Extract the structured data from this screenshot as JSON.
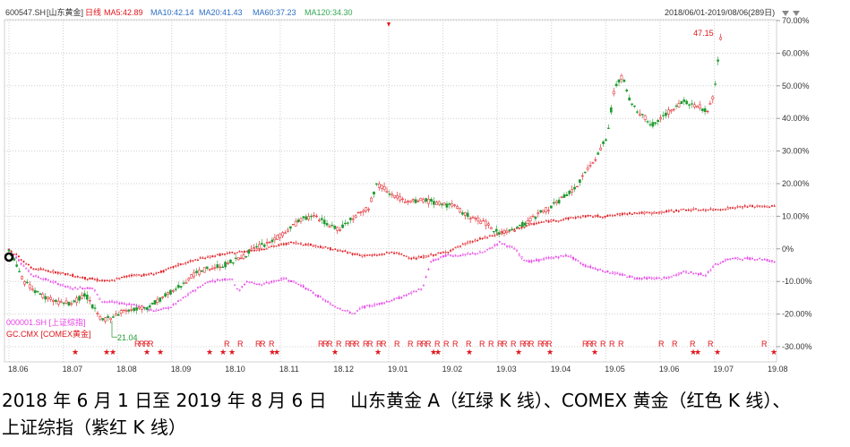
{
  "chart_data": {
    "type": "line",
    "header": {
      "code": "600547.SH",
      "name": "[山东黄金]",
      "period": "日线",
      "ma": [
        {
          "label": "MA5:42.89",
          "color": "#e0161c"
        },
        {
          "label": "MA10:42.14",
          "color": "#2e6fc6"
        },
        {
          "label": "MA20:41.43",
          "color": "#2e6fc6"
        },
        {
          "label": "MA60:37.23",
          "color": "#2e6fc6"
        },
        {
          "label": "MA120:34.30",
          "color": "#34a853"
        }
      ],
      "range": "2018/06/01-2019/08/06(289日)"
    },
    "x_ticks": [
      "18.06",
      "18.07",
      "18.08",
      "18.09",
      "18.10",
      "18.11",
      "18.12",
      "19.01",
      "19.02",
      "19.03",
      "19.04",
      "19.05",
      "19.06",
      "19.07",
      "19.08"
    ],
    "y_ticks": [
      "70.00%",
      "60.00%",
      "50.00%",
      "40.00%",
      "30.00%",
      "20.00%",
      "10.00%",
      "0%",
      "-10.00%",
      "-20.00%",
      "-30.00%"
    ],
    "ylim": [
      -30,
      70
    ],
    "annotations": {
      "max_label": "47.15",
      "min_label": "21.04"
    },
    "series": [
      {
        "name": "000001.SH [上证综指]",
        "color": "#e642e6",
        "points": [
          [
            0,
            0
          ],
          [
            15,
            -8
          ],
          [
            28,
            -10
          ],
          [
            40,
            -12
          ],
          [
            55,
            -12
          ],
          [
            60,
            -16
          ],
          [
            80,
            -17
          ],
          [
            95,
            -19
          ],
          [
            105,
            -18
          ],
          [
            120,
            -13
          ],
          [
            130,
            -10
          ],
          [
            145,
            -9
          ],
          [
            150,
            -13
          ],
          [
            155,
            -10
          ],
          [
            165,
            -11
          ],
          [
            180,
            -9
          ],
          [
            190,
            -11
          ],
          [
            200,
            -14
          ],
          [
            210,
            -17
          ],
          [
            225,
            -20
          ],
          [
            230,
            -18
          ],
          [
            240,
            -17
          ],
          [
            255,
            -15
          ],
          [
            270,
            -12
          ],
          [
            275,
            -4
          ],
          [
            285,
            -2
          ],
          [
            295,
            -2
          ],
          [
            310,
            -1
          ],
          [
            320,
            2
          ],
          [
            330,
            0
          ],
          [
            335,
            -3
          ],
          [
            340,
            -4
          ],
          [
            350,
            -3
          ],
          [
            365,
            -2
          ],
          [
            375,
            -5
          ],
          [
            390,
            -7
          ],
          [
            400,
            -8
          ],
          [
            410,
            -9
          ],
          [
            430,
            -9
          ],
          [
            440,
            -7
          ],
          [
            455,
            -8
          ],
          [
            460,
            -5
          ],
          [
            470,
            -3
          ],
          [
            490,
            -3
          ],
          [
            500,
            -4
          ]
        ]
      },
      {
        "name": "GC.CMX [COMEX黄金]",
        "color": "#e0161c",
        "points": [
          [
            0,
            0
          ],
          [
            15,
            -6
          ],
          [
            30,
            -7
          ],
          [
            50,
            -9
          ],
          [
            65,
            -10
          ],
          [
            80,
            -8
          ],
          [
            90,
            -8
          ],
          [
            100,
            -7
          ],
          [
            110,
            -5
          ],
          [
            125,
            -3
          ],
          [
            135,
            -2
          ],
          [
            150,
            -1
          ],
          [
            165,
            0
          ],
          [
            175,
            1
          ],
          [
            185,
            2
          ],
          [
            200,
            1
          ],
          [
            210,
            0
          ],
          [
            220,
            -1
          ],
          [
            230,
            -2
          ],
          [
            240,
            -2
          ],
          [
            250,
            -1
          ],
          [
            265,
            -3
          ],
          [
            275,
            -2
          ],
          [
            285,
            -1
          ],
          [
            300,
            2
          ],
          [
            315,
            4
          ],
          [
            330,
            6
          ],
          [
            345,
            8
          ],
          [
            360,
            9
          ],
          [
            375,
            10
          ],
          [
            390,
            10
          ],
          [
            405,
            11
          ],
          [
            420,
            11
          ],
          [
            440,
            12
          ],
          [
            460,
            12
          ],
          [
            480,
            13
          ],
          [
            500,
            13
          ]
        ]
      },
      {
        "name": "山东黄金",
        "color": "#e0161c",
        "down_color": "#1f9a2f",
        "points": [
          [
            0,
            0
          ],
          [
            10,
            -10
          ],
          [
            20,
            -14
          ],
          [
            30,
            -16
          ],
          [
            40,
            -17
          ],
          [
            50,
            -14
          ],
          [
            60,
            -22
          ],
          [
            66,
            -21
          ],
          [
            75,
            -19
          ],
          [
            90,
            -18
          ],
          [
            100,
            -15
          ],
          [
            110,
            -12
          ],
          [
            120,
            -8
          ],
          [
            130,
            -6
          ],
          [
            140,
            -5
          ],
          [
            150,
            -3
          ],
          [
            160,
            0
          ],
          [
            170,
            2
          ],
          [
            180,
            5
          ],
          [
            190,
            9
          ],
          [
            200,
            10
          ],
          [
            210,
            7
          ],
          [
            215,
            6
          ],
          [
            225,
            10
          ],
          [
            235,
            13
          ],
          [
            240,
            20
          ],
          [
            250,
            17
          ],
          [
            260,
            14
          ],
          [
            270,
            15
          ],
          [
            280,
            14
          ],
          [
            290,
            13
          ],
          [
            300,
            10
          ],
          [
            310,
            8
          ],
          [
            320,
            5
          ],
          [
            330,
            6
          ],
          [
            340,
            9
          ],
          [
            350,
            12
          ],
          [
            360,
            15
          ],
          [
            370,
            19
          ],
          [
            380,
            26
          ],
          [
            390,
            34
          ],
          [
            395,
            50
          ],
          [
            400,
            53
          ],
          [
            405,
            45
          ],
          [
            410,
            42
          ],
          [
            420,
            38
          ],
          [
            430,
            42
          ],
          [
            440,
            45
          ],
          [
            450,
            44
          ],
          [
            455,
            42
          ],
          [
            460,
            47
          ],
          [
            463,
            61
          ],
          [
            465,
            67
          ]
        ]
      }
    ],
    "markers": {
      "note": "R / ★ event markers"
    }
  },
  "caption": {
    "line1": "2018 年 6 月 1 日至 2019 年 8 月 6 日　 山东黄金 A（红绿 K 线）、COMEX 黄金（红色 K 线）、",
    "line2": "上证综指（紫红 K 线）"
  }
}
